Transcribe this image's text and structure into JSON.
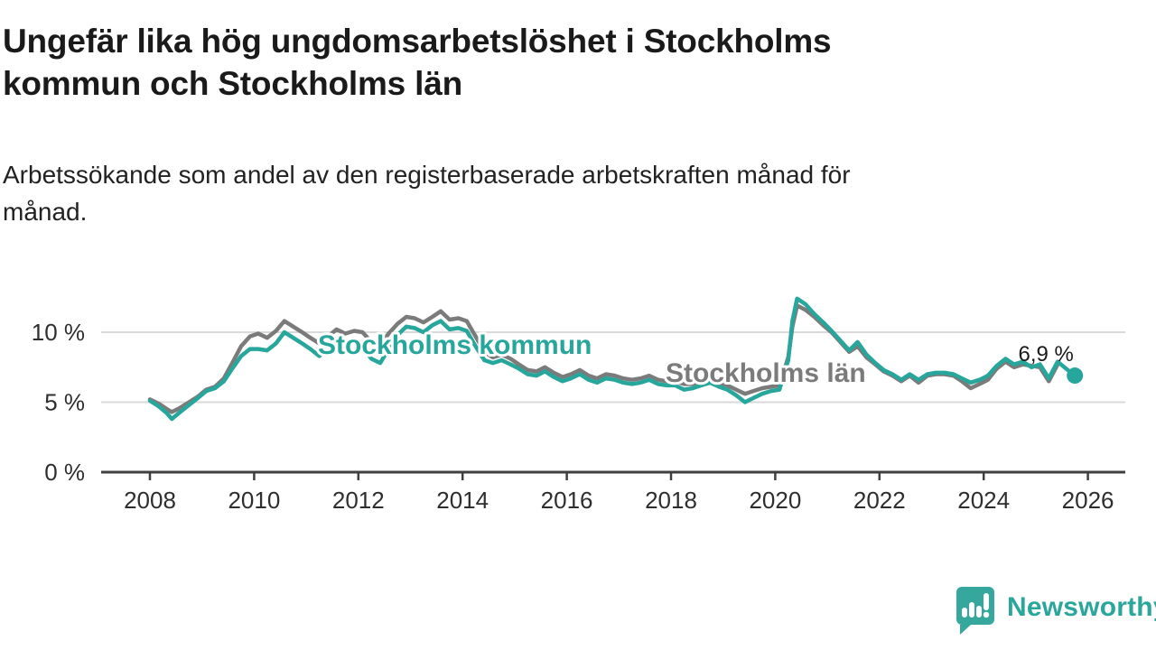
{
  "header": {
    "title": "Ungefär lika hög ungdomsarbetslöshet i Stockholms\nkommun och Stockholms län",
    "subtitle": "Arbetssökande som andel av den registerbaserade arbetskraften månad för\nmånad."
  },
  "branding": {
    "logo_text": "Newsworthy"
  },
  "colors": {
    "kommun": "#27a69c",
    "lan": "#7b7b7b",
    "grid": "#d9d9d9",
    "axis": "#3f3f3f",
    "tick_text": "#2e2e2e",
    "annotation_text": "#1a1a1a",
    "brand": "#2ba69b"
  },
  "chart_data": {
    "type": "line",
    "title": "Ungefär lika hög ungdomsarbetslöshet i Stockholms kommun och Stockholms län",
    "subtitle": "Arbetssökande som andel av den registerbaserade arbetskraften månad för månad.",
    "xlabel": "",
    "ylabel": "",
    "xlim": [
      2007.9,
      2026.72
    ],
    "ylim": [
      0,
      13
    ],
    "grid": "horizontal",
    "legend_position": "inline-labels",
    "x_ticks": [
      2008,
      2010,
      2012,
      2014,
      2016,
      2018,
      2020,
      2022,
      2024,
      2026
    ],
    "y_ticks": [
      {
        "value": 0,
        "label": "0 %"
      },
      {
        "value": 5,
        "label": "5 %"
      },
      {
        "value": 10,
        "label": "10 %"
      }
    ],
    "end_annotation": {
      "label": "6,9 %",
      "value": 6.9,
      "x": 2025.75,
      "series": "Stockholms kommun"
    },
    "series": [
      {
        "name": "Stockholms län",
        "color_key": "lan",
        "label_pos": {
          "x": 737,
          "y": 423
        },
        "points": [
          [
            2008.0,
            5.2
          ],
          [
            2008.17,
            4.9
          ],
          [
            2008.33,
            4.5
          ],
          [
            2008.42,
            4.3
          ],
          [
            2008.58,
            4.6
          ],
          [
            2008.75,
            5.0
          ],
          [
            2008.92,
            5.4
          ],
          [
            2009.08,
            5.9
          ],
          [
            2009.25,
            6.1
          ],
          [
            2009.42,
            6.7
          ],
          [
            2009.58,
            7.8
          ],
          [
            2009.75,
            9.0
          ],
          [
            2009.92,
            9.7
          ],
          [
            2010.08,
            9.9
          ],
          [
            2010.25,
            9.6
          ],
          [
            2010.42,
            10.1
          ],
          [
            2010.58,
            10.8
          ],
          [
            2010.75,
            10.4
          ],
          [
            2010.92,
            10.0
          ],
          [
            2011.08,
            9.6
          ],
          [
            2011.25,
            9.2
          ],
          [
            2011.42,
            9.7
          ],
          [
            2011.58,
            10.2
          ],
          [
            2011.75,
            9.9
          ],
          [
            2011.92,
            10.1
          ],
          [
            2012.08,
            10.0
          ],
          [
            2012.25,
            9.3
          ],
          [
            2012.42,
            9.1
          ],
          [
            2012.58,
            9.9
          ],
          [
            2012.75,
            10.6
          ],
          [
            2012.92,
            11.1
          ],
          [
            2013.08,
            11.0
          ],
          [
            2013.25,
            10.7
          ],
          [
            2013.42,
            11.1
          ],
          [
            2013.58,
            11.5
          ],
          [
            2013.75,
            10.9
          ],
          [
            2013.92,
            11.0
          ],
          [
            2014.08,
            10.8
          ],
          [
            2014.25,
            9.7
          ],
          [
            2014.42,
            8.6
          ],
          [
            2014.58,
            8.2
          ],
          [
            2014.75,
            8.4
          ],
          [
            2014.92,
            8.1
          ],
          [
            2015.08,
            7.7
          ],
          [
            2015.25,
            7.3
          ],
          [
            2015.42,
            7.2
          ],
          [
            2015.58,
            7.5
          ],
          [
            2015.75,
            7.1
          ],
          [
            2015.92,
            6.8
          ],
          [
            2016.08,
            7.0
          ],
          [
            2016.25,
            7.3
          ],
          [
            2016.42,
            6.9
          ],
          [
            2016.58,
            6.7
          ],
          [
            2016.75,
            7.0
          ],
          [
            2016.92,
            6.9
          ],
          [
            2017.08,
            6.7
          ],
          [
            2017.25,
            6.6
          ],
          [
            2017.42,
            6.7
          ],
          [
            2017.58,
            6.9
          ],
          [
            2017.75,
            6.6
          ],
          [
            2017.92,
            6.5
          ],
          [
            2018.08,
            6.5
          ],
          [
            2018.25,
            6.3
          ],
          [
            2018.42,
            6.3
          ],
          [
            2018.58,
            6.5
          ],
          [
            2018.75,
            6.6
          ],
          [
            2018.92,
            6.4
          ],
          [
            2019.08,
            6.2
          ],
          [
            2019.25,
            5.9
          ],
          [
            2019.42,
            5.6
          ],
          [
            2019.58,
            5.8
          ],
          [
            2019.75,
            6.0
          ],
          [
            2019.92,
            6.1
          ],
          [
            2020.08,
            6.2
          ],
          [
            2020.25,
            8.2
          ],
          [
            2020.33,
            10.4
          ],
          [
            2020.42,
            11.9
          ],
          [
            2020.58,
            11.6
          ],
          [
            2020.75,
            11.1
          ],
          [
            2020.92,
            10.5
          ],
          [
            2021.08,
            10.0
          ],
          [
            2021.25,
            9.3
          ],
          [
            2021.42,
            8.6
          ],
          [
            2021.58,
            9.0
          ],
          [
            2021.75,
            8.2
          ],
          [
            2021.92,
            7.7
          ],
          [
            2022.08,
            7.2
          ],
          [
            2022.25,
            6.9
          ],
          [
            2022.42,
            6.5
          ],
          [
            2022.58,
            6.9
          ],
          [
            2022.75,
            6.4
          ],
          [
            2022.92,
            6.9
          ],
          [
            2023.08,
            7.0
          ],
          [
            2023.25,
            7.0
          ],
          [
            2023.42,
            6.9
          ],
          [
            2023.58,
            6.5
          ],
          [
            2023.75,
            6.0
          ],
          [
            2023.92,
            6.3
          ],
          [
            2024.08,
            6.6
          ],
          [
            2024.25,
            7.4
          ],
          [
            2024.42,
            7.9
          ],
          [
            2024.58,
            7.5
          ],
          [
            2024.75,
            7.7
          ],
          [
            2024.92,
            7.6
          ],
          [
            2025.08,
            7.5
          ],
          [
            2025.25,
            6.5
          ],
          [
            2025.42,
            7.7
          ]
        ]
      },
      {
        "name": "Stockholms kommun",
        "color_key": "kommun",
        "label_pos": {
          "x": 352,
          "y": 392
        },
        "points": [
          [
            2008.0,
            5.1
          ],
          [
            2008.17,
            4.7
          ],
          [
            2008.33,
            4.2
          ],
          [
            2008.42,
            3.8
          ],
          [
            2008.58,
            4.3
          ],
          [
            2008.75,
            4.8
          ],
          [
            2008.92,
            5.3
          ],
          [
            2009.08,
            5.8
          ],
          [
            2009.25,
            6.0
          ],
          [
            2009.42,
            6.5
          ],
          [
            2009.58,
            7.4
          ],
          [
            2009.75,
            8.3
          ],
          [
            2009.92,
            8.8
          ],
          [
            2010.08,
            8.8
          ],
          [
            2010.25,
            8.7
          ],
          [
            2010.42,
            9.2
          ],
          [
            2010.58,
            10.0
          ],
          [
            2010.75,
            9.6
          ],
          [
            2010.92,
            9.2
          ],
          [
            2011.08,
            8.8
          ],
          [
            2011.25,
            8.3
          ],
          [
            2011.42,
            8.9
          ],
          [
            2011.58,
            9.4
          ],
          [
            2011.75,
            9.1
          ],
          [
            2011.92,
            9.3
          ],
          [
            2012.08,
            9.0
          ],
          [
            2012.25,
            8.1
          ],
          [
            2012.42,
            7.8
          ],
          [
            2012.58,
            8.8
          ],
          [
            2012.75,
            9.8
          ],
          [
            2012.92,
            10.4
          ],
          [
            2013.08,
            10.3
          ],
          [
            2013.25,
            10.0
          ],
          [
            2013.42,
            10.5
          ],
          [
            2013.58,
            10.8
          ],
          [
            2013.75,
            10.2
          ],
          [
            2013.92,
            10.3
          ],
          [
            2014.08,
            10.1
          ],
          [
            2014.25,
            9.0
          ],
          [
            2014.42,
            8.0
          ],
          [
            2014.58,
            7.8
          ],
          [
            2014.75,
            8.0
          ],
          [
            2014.92,
            7.7
          ],
          [
            2015.08,
            7.4
          ],
          [
            2015.25,
            7.0
          ],
          [
            2015.42,
            6.9
          ],
          [
            2015.58,
            7.2
          ],
          [
            2015.75,
            6.8
          ],
          [
            2015.92,
            6.5
          ],
          [
            2016.08,
            6.7
          ],
          [
            2016.25,
            7.0
          ],
          [
            2016.42,
            6.6
          ],
          [
            2016.58,
            6.4
          ],
          [
            2016.75,
            6.7
          ],
          [
            2016.92,
            6.6
          ],
          [
            2017.08,
            6.4
          ],
          [
            2017.25,
            6.3
          ],
          [
            2017.42,
            6.4
          ],
          [
            2017.58,
            6.6
          ],
          [
            2017.75,
            6.3
          ],
          [
            2017.92,
            6.2
          ],
          [
            2018.08,
            6.2
          ],
          [
            2018.25,
            5.9
          ],
          [
            2018.42,
            6.0
          ],
          [
            2018.58,
            6.2
          ],
          [
            2018.75,
            6.4
          ],
          [
            2018.92,
            6.1
          ],
          [
            2019.08,
            5.9
          ],
          [
            2019.25,
            5.5
          ],
          [
            2019.42,
            5.0
          ],
          [
            2019.58,
            5.3
          ],
          [
            2019.75,
            5.6
          ],
          [
            2019.92,
            5.8
          ],
          [
            2020.08,
            5.9
          ],
          [
            2020.25,
            8.0
          ],
          [
            2020.33,
            10.8
          ],
          [
            2020.42,
            12.4
          ],
          [
            2020.58,
            12.0
          ],
          [
            2020.75,
            11.3
          ],
          [
            2020.92,
            10.7
          ],
          [
            2021.08,
            10.1
          ],
          [
            2021.25,
            9.4
          ],
          [
            2021.42,
            8.7
          ],
          [
            2021.58,
            9.3
          ],
          [
            2021.75,
            8.4
          ],
          [
            2021.92,
            7.8
          ],
          [
            2022.08,
            7.3
          ],
          [
            2022.25,
            7.0
          ],
          [
            2022.42,
            6.6
          ],
          [
            2022.58,
            7.0
          ],
          [
            2022.75,
            6.6
          ],
          [
            2022.92,
            7.0
          ],
          [
            2023.08,
            7.1
          ],
          [
            2023.25,
            7.1
          ],
          [
            2023.42,
            7.0
          ],
          [
            2023.58,
            6.7
          ],
          [
            2023.75,
            6.4
          ],
          [
            2023.92,
            6.6
          ],
          [
            2024.08,
            6.9
          ],
          [
            2024.25,
            7.6
          ],
          [
            2024.42,
            8.1
          ],
          [
            2024.58,
            7.7
          ],
          [
            2024.75,
            7.9
          ],
          [
            2024.92,
            7.5
          ],
          [
            2025.08,
            7.7
          ],
          [
            2025.25,
            6.7
          ],
          [
            2025.42,
            7.9
          ],
          [
            2025.58,
            7.4
          ],
          [
            2025.75,
            6.9
          ]
        ]
      }
    ]
  }
}
